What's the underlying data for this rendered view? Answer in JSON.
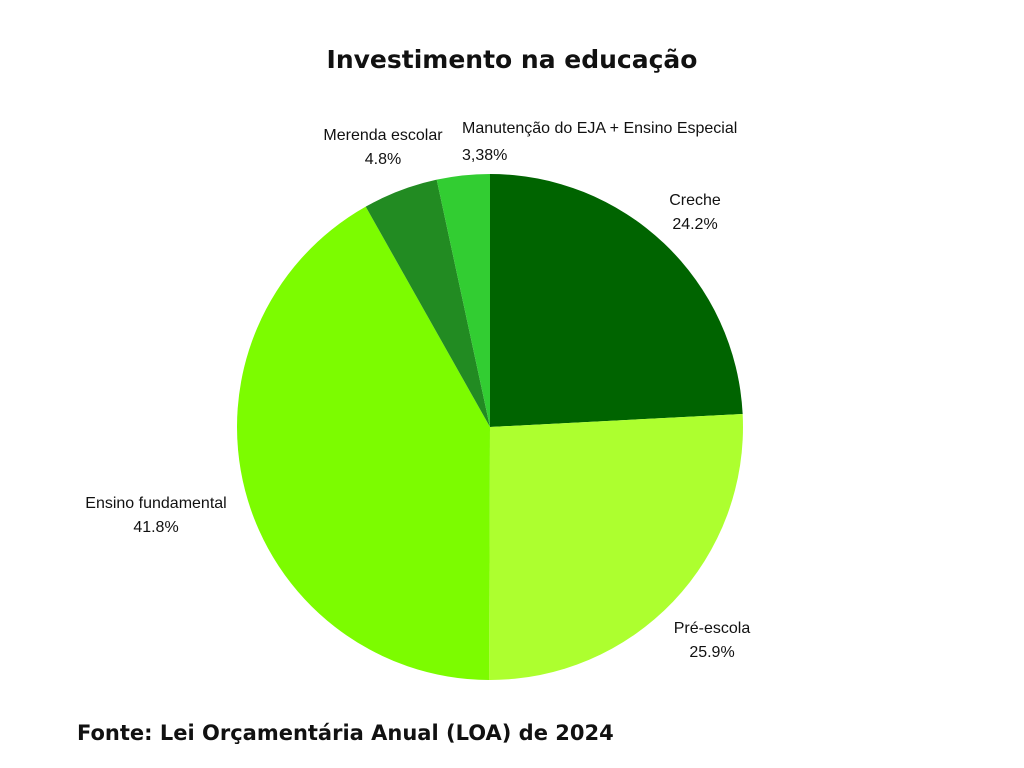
{
  "chart_data": {
    "type": "pie",
    "title": "Investimento na educação",
    "source": "Fonte: Lei Orçamentária Anual (LOA) de 2024",
    "categories": [
      "Creche",
      "Pré-escola",
      "Ensino fundamental",
      "Merenda escolar",
      "Manutenção do EJA + Ensino Especial"
    ],
    "values": [
      24.2,
      25.9,
      41.8,
      4.8,
      3.38
    ],
    "value_labels": [
      "24.2%",
      "25.9%",
      "41.8%",
      "4.8%",
      "3,38%"
    ],
    "colors": [
      "#006400",
      "#adff2f",
      "#7cfc00",
      "#228b22",
      "#32cd32"
    ]
  }
}
